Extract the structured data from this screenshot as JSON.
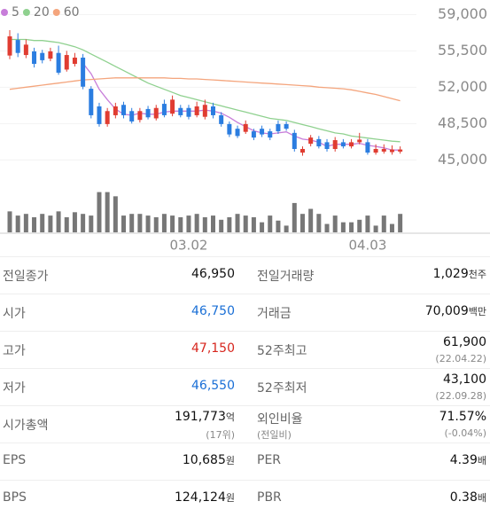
{
  "chart_data": {
    "type": "candlestick",
    "series": [
      {
        "name": "5",
        "color": "#c77dd9",
        "values": [
          null,
          null,
          null,
          null,
          null,
          null,
          null,
          null,
          null,
          54300,
          53300,
          51800,
          50800,
          49900,
          49400,
          49300,
          49500,
          49400,
          49400,
          49600,
          49700,
          49700,
          49700,
          49700,
          49800,
          49700,
          49500,
          49100,
          48600,
          48200,
          47800,
          47600,
          47500,
          47600,
          47700,
          47300,
          47000,
          46900,
          46700,
          46300,
          46500,
          46500,
          46500,
          46600,
          46400,
          46300,
          46150,
          45950,
          45950
        ]
      },
      {
        "name": "20",
        "color": "#8fd18f",
        "values": [
          56600,
          56600,
          56600,
          56500,
          56500,
          56400,
          56300,
          56100,
          55900,
          55600,
          55200,
          54800,
          54400,
          54000,
          53600,
          53200,
          52800,
          52400,
          52100,
          51800,
          51500,
          51200,
          51000,
          50800,
          50600,
          50400,
          50200,
          50000,
          49800,
          49600,
          49400,
          49200,
          49000,
          48900,
          48800,
          48600,
          48400,
          48200,
          48000,
          47800,
          47600,
          47500,
          47300,
          47200,
          47100,
          47000,
          46900,
          46800,
          46750
        ]
      },
      {
        "name": "60",
        "color": "#f4a57d",
        "values": [
          51800,
          51900,
          52000,
          52100,
          52200,
          52300,
          52400,
          52500,
          52600,
          52700,
          52750,
          52800,
          52850,
          52900,
          52900,
          52900,
          52900,
          52900,
          52900,
          52900,
          52850,
          52850,
          52800,
          52800,
          52750,
          52700,
          52650,
          52600,
          52550,
          52500,
          52450,
          52400,
          52350,
          52300,
          52250,
          52200,
          52150,
          52100,
          52000,
          51950,
          51900,
          51850,
          51750,
          51600,
          51450,
          51300,
          51100,
          50900,
          50700
        ]
      }
    ],
    "categories": [
      null,
      null,
      null,
      null,
      null,
      null,
      null,
      null,
      null,
      null,
      null,
      null,
      null,
      null,
      null,
      null,
      null,
      null,
      null,
      null,
      null,
      null,
      "03.02",
      null,
      null,
      null,
      null,
      null,
      null,
      null,
      null,
      null,
      null,
      null,
      null,
      null,
      null,
      null,
      null,
      null,
      null,
      null,
      null,
      null,
      "04.03",
      null,
      null,
      null,
      null
    ],
    "open": [
      55050,
      56550,
      55100,
      55450,
      55300,
      54750,
      55300,
      53700,
      54250,
      54850,
      51850,
      50150,
      48450,
      49300,
      50300,
      49700,
      48850,
      49900,
      49000,
      50400,
      49450,
      50000,
      50000,
      49300,
      49150,
      50150,
      49300,
      48450,
      48000,
      47700,
      47750,
      48000,
      47750,
      48450,
      48450,
      47600,
      45700,
      46550,
      47000,
      46700,
      46050,
      46700,
      46300,
      46700,
      46700,
      45700,
      45800,
      45750,
      45800
    ],
    "high": [
      57500,
      57200,
      56600,
      55800,
      55600,
      55800,
      56000,
      55500,
      55300,
      55200,
      52100,
      50500,
      50000,
      50500,
      50600,
      50000,
      50000,
      50200,
      50300,
      50800,
      51200,
      50300,
      50300,
      50600,
      50800,
      50500,
      49600,
      48700,
      48300,
      48800,
      48000,
      48300,
      48000,
      48800,
      48700,
      47900,
      46300,
      47400,
      47300,
      47000,
      47200,
      47000,
      47000,
      47600,
      47000,
      46500,
      46500,
      46400,
      46300
    ],
    "low": [
      54700,
      54900,
      54800,
      53900,
      54300,
      54500,
      53200,
      53500,
      54000,
      51800,
      49000,
      48200,
      48200,
      49000,
      49000,
      48500,
      48600,
      48900,
      48800,
      49100,
      49200,
      49100,
      48900,
      49100,
      48900,
      49000,
      48200,
      47200,
      47100,
      47500,
      46900,
      47200,
      46900,
      47500,
      47800,
      45800,
      45400,
      46300,
      46100,
      45800,
      45800,
      46100,
      46100,
      46500,
      45500,
      45500,
      45600,
      45500,
      45600
    ],
    "close": [
      56900,
      55300,
      56100,
      54250,
      54600,
      55450,
      53400,
      55100,
      54850,
      52050,
      49300,
      48450,
      49700,
      50150,
      49300,
      48700,
      49700,
      49100,
      50000,
      49300,
      50800,
      49300,
      49150,
      50150,
      50300,
      49300,
      48450,
      47450,
      47300,
      48450,
      47150,
      47450,
      47150,
      47750,
      48000,
      46050,
      46050,
      47150,
      46300,
      46050,
      46900,
      46300,
      46700,
      46950,
      45700,
      46050,
      46050,
      46000,
      46000
    ],
    "volume": [
      25,
      20,
      22,
      18,
      22,
      20,
      25,
      18,
      24,
      22,
      20,
      48,
      48,
      43,
      20,
      22,
      22,
      20,
      18,
      22,
      20,
      18,
      20,
      22,
      18,
      20,
      15,
      18,
      22,
      20,
      18,
      12,
      20,
      14,
      8,
      35,
      22,
      28,
      22,
      10,
      20,
      12,
      12,
      15,
      20,
      8,
      20,
      10,
      22
    ],
    "volume_lim": [
      0,
      55
    ],
    "volume_color": "#777777",
    "up_color": "#e03c31",
    "down_color": "#2b7de0",
    "ylim": [
      44000,
      60400
    ],
    "yticks": [
      {
        "value": 45000,
        "label": "45,000"
      },
      {
        "value": 48500,
        "label": "48,500"
      },
      {
        "value": 52000,
        "label": "52,000"
      },
      {
        "value": 55500,
        "label": "55,500"
      },
      {
        "value": 59000,
        "label": "59,000"
      }
    ],
    "grid": true
  },
  "table": {
    "rows": [
      [
        {
          "label": "전일종가",
          "value": "46,950"
        },
        {
          "label": "전일거래량",
          "value": "1,029",
          "unit": "천주"
        }
      ],
      [
        {
          "label": "시가",
          "value": "46,750",
          "color": "#1a6fd6"
        },
        {
          "label": "거래금",
          "value": "70,009",
          "unit": "백만"
        }
      ],
      [
        {
          "label": "고가",
          "value": "47,150",
          "color": "#d7261e"
        },
        {
          "label": "52주최고",
          "value": "61,900",
          "sub": "(22.04.22)"
        }
      ],
      [
        {
          "label": "저가",
          "value": "46,550",
          "color": "#1a6fd6"
        },
        {
          "label": "52주최저",
          "value": "43,100",
          "sub": "(22.09.28)"
        }
      ],
      [
        {
          "label": "시가총액",
          "value": "191,773",
          "unit": "억",
          "sub": "(17위)"
        },
        {
          "label": "외인비율",
          "sublabel": "(전일비)",
          "value": "71.57%",
          "sub": "(-0.04%)"
        }
      ],
      [
        {
          "label": "EPS",
          "value": "10,685",
          "unit": "원"
        },
        {
          "label": "PER",
          "value": "4.39",
          "unit": "배"
        }
      ],
      [
        {
          "label": "BPS",
          "value": "124,124",
          "unit": "원"
        },
        {
          "label": "PBR",
          "value": "0.38",
          "unit": "배"
        }
      ]
    ]
  }
}
